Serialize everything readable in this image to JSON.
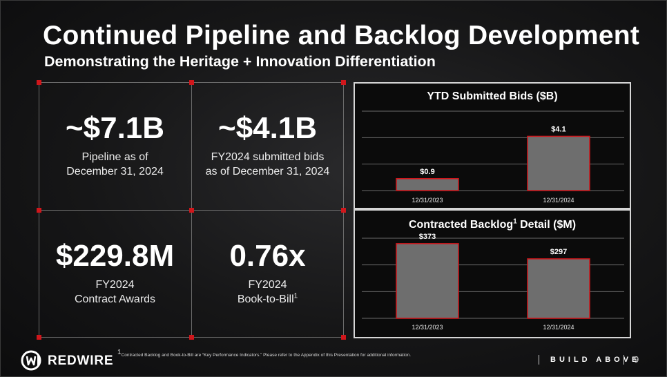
{
  "header": {
    "title": "Continued Pipeline and Backlog Development",
    "subtitle": "Demonstrating the Heritage + Innovation Differentiation"
  },
  "metrics": [
    {
      "value": "~$7.1B",
      "caption_line1": "Pipeline as of",
      "caption_line2": "December 31, 2024",
      "sup": ""
    },
    {
      "value": "~$4.1B",
      "caption_line1": "FY2024 submitted bids",
      "caption_line2": "as of December 31, 2024",
      "sup": ""
    },
    {
      "value": "$229.8M",
      "caption_line1": "FY2024",
      "caption_line2": "Contract Awards",
      "sup": ""
    },
    {
      "value": "0.76x",
      "caption_line1": "FY2024",
      "caption_line2": "Book-to-Bill",
      "sup": "1"
    }
  ],
  "chart_data": [
    {
      "type": "bar",
      "title": "YTD Submitted Bids ($B)",
      "title_sup": "",
      "categories": [
        "12/31/2023",
        "12/31/2024"
      ],
      "values": [
        0.9,
        4.1
      ],
      "labels": [
        "$0.9",
        "$4.1"
      ],
      "ylim": [
        0,
        6
      ],
      "grid": true
    },
    {
      "type": "bar",
      "title": "Contracted Backlog",
      "title_sup": "1",
      "title_suffix": " Detail ($M)",
      "categories": [
        "12/31/2023",
        "12/31/2024"
      ],
      "values": [
        373,
        297
      ],
      "labels": [
        "$373",
        "$297"
      ],
      "ylim": [
        0,
        400
      ],
      "grid": true
    }
  ],
  "footer": {
    "footnote_sup": "1",
    "footnote": "Contracted Backlog and Book-to-Bill are “Key Performance Indicators.”  Please refer to the Appendix of this Presentation for additional information.",
    "brand": "REDWIRE",
    "tagline": "BUILD ABOVE",
    "page_number": "9"
  },
  "colors": {
    "accent": "#d0161b",
    "bar_fill": "#6e6e6e",
    "bar_border": "#d0161b",
    "grid_line": "#6b6b6b"
  }
}
